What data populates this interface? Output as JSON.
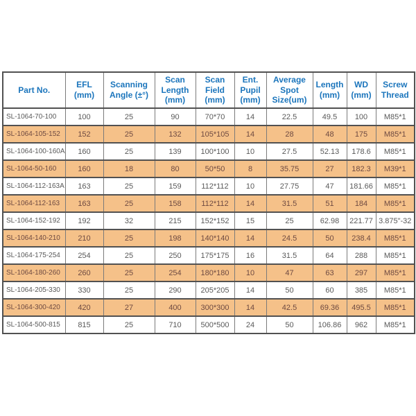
{
  "colors": {
    "header_text": "#1b75bc",
    "row_alt_bg": "#f5c189",
    "body_text": "#595959",
    "alt_text": "#6e4a42",
    "border_dark": "#515151",
    "border_light": "#7a7a7a"
  },
  "table": {
    "columns": [
      "Part No.",
      "EFL\n(mm)",
      "Scanning\nAngle (±°)",
      "Scan\nLength\n(mm)",
      "Scan\nField\n(mm)",
      "Ent.\nPupil\n(mm)",
      "Average\nSpot\nSize(um)",
      "Length\n(mm)",
      "WD\n(mm)",
      "Screw\nThread"
    ],
    "rows": [
      {
        "part_no": "SL-1064-70-100",
        "efl": "100",
        "scanning_angle": "25",
        "scan_length": "90",
        "scan_field": "70*70",
        "ent_pupil": "14",
        "avg_spot_size": "22.5",
        "length": "49.5",
        "wd": "100",
        "screw_thread": "M85*1"
      },
      {
        "part_no": "SL-1064-105-152",
        "efl": "152",
        "scanning_angle": "25",
        "scan_length": "132",
        "scan_field": "105*105",
        "ent_pupil": "14",
        "avg_spot_size": "28",
        "length": "48",
        "wd": "175",
        "screw_thread": "M85*1"
      },
      {
        "part_no": "SL-1064-100-160A",
        "efl": "160",
        "scanning_angle": "25",
        "scan_length": "139",
        "scan_field": "100*100",
        "ent_pupil": "10",
        "avg_spot_size": "27.5",
        "length": "52.13",
        "wd": "178.6",
        "screw_thread": "M85*1"
      },
      {
        "part_no": "SL-1064-50-160",
        "efl": "160",
        "scanning_angle": "18",
        "scan_length": "80",
        "scan_field": "50*50",
        "ent_pupil": "8",
        "avg_spot_size": "35.75",
        "length": "27",
        "wd": "182.3",
        "screw_thread": "M39*1"
      },
      {
        "part_no": "SL-1064-112-163A",
        "efl": "163",
        "scanning_angle": "25",
        "scan_length": "159",
        "scan_field": "112*112",
        "ent_pupil": "10",
        "avg_spot_size": "27.75",
        "length": "47",
        "wd": "181.66",
        "screw_thread": "M85*1"
      },
      {
        "part_no": "SL-1064-112-163",
        "efl": "163",
        "scanning_angle": "25",
        "scan_length": "158",
        "scan_field": "112*112",
        "ent_pupil": "14",
        "avg_spot_size": "31.5",
        "length": "51",
        "wd": "184",
        "screw_thread": "M85*1"
      },
      {
        "part_no": "SL-1064-152-192",
        "efl": "192",
        "scanning_angle": "32",
        "scan_length": "215",
        "scan_field": "152*152",
        "ent_pupil": "15",
        "avg_spot_size": "25",
        "length": "62.98",
        "wd": "221.77",
        "screw_thread": "3.875\"-32"
      },
      {
        "part_no": "SL-1064-140-210",
        "efl": "210",
        "scanning_angle": "25",
        "scan_length": "198",
        "scan_field": "140*140",
        "ent_pupil": "14",
        "avg_spot_size": "24.5",
        "length": "50",
        "wd": "238.4",
        "screw_thread": "M85*1"
      },
      {
        "part_no": "SL-1064-175-254",
        "efl": "254",
        "scanning_angle": "25",
        "scan_length": "250",
        "scan_field": "175*175",
        "ent_pupil": "16",
        "avg_spot_size": "31.5",
        "length": "64",
        "wd": "288",
        "screw_thread": "M85*1"
      },
      {
        "part_no": "SL-1064-180-260",
        "efl": "260",
        "scanning_angle": "25",
        "scan_length": "254",
        "scan_field": "180*180",
        "ent_pupil": "10",
        "avg_spot_size": "47",
        "length": "63",
        "wd": "297",
        "screw_thread": "M85*1"
      },
      {
        "part_no": "SL-1064-205-330",
        "efl": "330",
        "scanning_angle": "25",
        "scan_length": "290",
        "scan_field": "205*205",
        "ent_pupil": "14",
        "avg_spot_size": "50",
        "length": "60",
        "wd": "385",
        "screw_thread": "M85*1"
      },
      {
        "part_no": "SL-1064-300-420",
        "efl": "420",
        "scanning_angle": "27",
        "scan_length": "400",
        "scan_field": "300*300",
        "ent_pupil": "14",
        "avg_spot_size": "42.5",
        "length": "69.36",
        "wd": "495.5",
        "screw_thread": "M85*1"
      },
      {
        "part_no": "SL-1064-500-815",
        "efl": "815",
        "scanning_angle": "25",
        "scan_length": "710",
        "scan_field": "500*500",
        "ent_pupil": "24",
        "avg_spot_size": "50",
        "length": "106.86",
        "wd": "962",
        "screw_thread": "M85*1"
      }
    ]
  }
}
